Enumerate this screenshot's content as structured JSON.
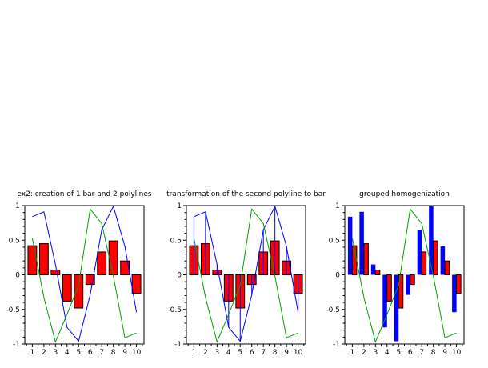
{
  "figure": {
    "background": "#ffffff",
    "foreground": "#000000"
  },
  "axes": {
    "ylim": [
      -1,
      1
    ],
    "y_major_ticks": [
      {
        "value": 1,
        "label": "1"
      },
      {
        "value": 0.5,
        "label": "0.5"
      },
      {
        "value": 0,
        "label": "0"
      },
      {
        "value": -0.5,
        "label": "-0.5"
      },
      {
        "value": -1,
        "label": "-1"
      }
    ],
    "y_minor_step": 0.1,
    "x_major_ticks": [
      {
        "value": 1,
        "label": "1"
      },
      {
        "value": 2,
        "label": "2"
      },
      {
        "value": 3,
        "label": "3"
      },
      {
        "value": 4,
        "label": "4"
      },
      {
        "value": 5,
        "label": "5"
      },
      {
        "value": 6,
        "label": "6"
      },
      {
        "value": 7,
        "label": "7"
      },
      {
        "value": 8,
        "label": "8"
      },
      {
        "value": 9,
        "label": "9"
      },
      {
        "value": 10,
        "label": "10"
      }
    ],
    "x_minor_step": 0.5,
    "grid": false,
    "frame": true
  },
  "colors": {
    "bar_fill": "#ff0000",
    "bar_edge": "#000000",
    "polyline_blue": "#0000ff",
    "polyline_green": "#00a000"
  },
  "chart_data": [
    {
      "type": "combo",
      "title": "ex2: creation of 1 bar and 2 polylines",
      "categories": [
        1,
        2,
        3,
        4,
        5,
        6,
        7,
        8,
        9,
        10
      ],
      "ylim": [
        -1,
        1
      ],
      "series": [
        {
          "name": "red-bars",
          "kind": "bar",
          "color": "#ff0000",
          "edge_color": "#000000",
          "values": [
            0.42,
            0.45,
            0.07,
            -0.38,
            -0.48,
            -0.14,
            0.33,
            0.49,
            0.2,
            -0.27
          ]
        },
        {
          "name": "blue-polyline",
          "kind": "line",
          "color": "#0000ff",
          "values": [
            0.84,
            0.91,
            0.15,
            -0.76,
            -0.96,
            -0.29,
            0.65,
            0.99,
            0.41,
            -0.54
          ]
        },
        {
          "name": "green-polyline",
          "kind": "line",
          "color": "#00a000",
          "values": [
            0.53,
            -0.33,
            -0.97,
            -0.57,
            -0.15,
            0.95,
            0.74,
            -0.02,
            -0.91,
            -0.84
          ]
        }
      ]
    },
    {
      "type": "combo",
      "title": "transformation of the second polyline to bar",
      "categories": [
        1,
        2,
        3,
        4,
        5,
        6,
        7,
        8,
        9,
        10
      ],
      "ylim": [
        -1,
        1
      ],
      "series": [
        {
          "name": "red-bars",
          "kind": "bar",
          "color": "#ff0000",
          "edge_color": "#000000",
          "values": [
            0.42,
            0.45,
            0.07,
            -0.38,
            -0.48,
            -0.14,
            0.33,
            0.49,
            0.2,
            -0.27
          ]
        },
        {
          "name": "blue-needles-line",
          "kind": "line+needles",
          "color": "#0000ff",
          "values": [
            0.84,
            0.91,
            0.15,
            -0.76,
            -0.96,
            -0.29,
            0.65,
            0.99,
            0.41,
            -0.54
          ]
        },
        {
          "name": "green-polyline",
          "kind": "line",
          "color": "#00a000",
          "values": [
            0.53,
            -0.33,
            -0.97,
            -0.57,
            -0.15,
            0.95,
            0.74,
            -0.02,
            -0.91,
            -0.84
          ]
        }
      ]
    },
    {
      "type": "combo",
      "title": "grouped homogenization",
      "categories": [
        1,
        2,
        3,
        4,
        5,
        6,
        7,
        8,
        9,
        10
      ],
      "ylim": [
        -1,
        1
      ],
      "series": [
        {
          "name": "blue-bars",
          "kind": "bar-left",
          "color": "#0000ff",
          "values": [
            0.84,
            0.91,
            0.15,
            -0.76,
            -0.96,
            -0.29,
            0.65,
            0.99,
            0.41,
            -0.54
          ]
        },
        {
          "name": "red-bars",
          "kind": "bar-right",
          "color": "#ff0000",
          "edge_color": "#000000",
          "values": [
            0.42,
            0.45,
            0.07,
            -0.38,
            -0.48,
            -0.14,
            0.33,
            0.49,
            0.2,
            -0.27
          ]
        },
        {
          "name": "green-polyline",
          "kind": "line",
          "color": "#00a000",
          "values": [
            0.53,
            -0.33,
            -0.97,
            -0.57,
            -0.15,
            0.95,
            0.74,
            -0.02,
            -0.91,
            -0.84
          ]
        }
      ]
    }
  ]
}
